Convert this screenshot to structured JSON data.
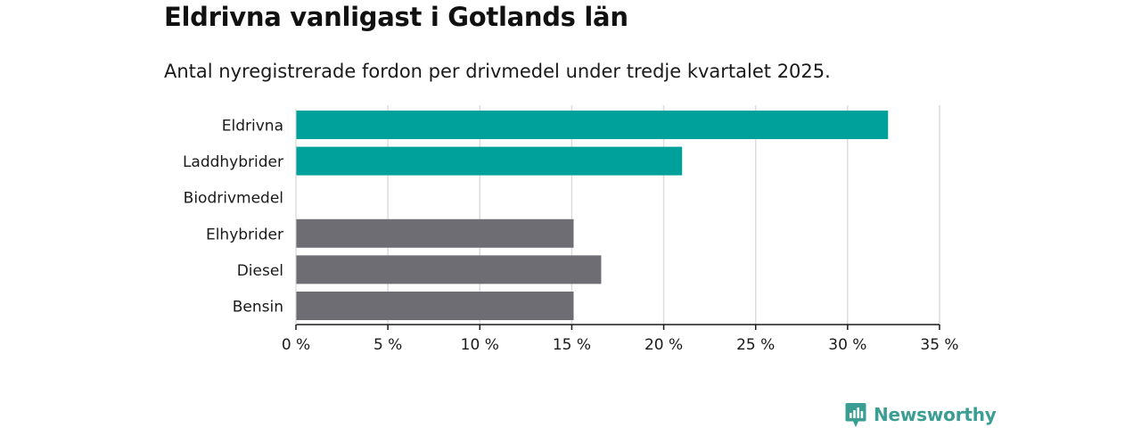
{
  "title": "Eldrivna vanligast i Gotlands län",
  "subtitle": "Antal nyregistrerade fordon per drivmedel under tredje kvartalet 2025.",
  "brand": {
    "name": "Newsworthy",
    "icon": "newsworthy-logo-icon",
    "color": "#3a9e93"
  },
  "chart_data": {
    "type": "bar",
    "orientation": "horizontal",
    "categories": [
      "Eldrivna",
      "Laddhybrider",
      "Biodrivmedel",
      "Elhybrider",
      "Diesel",
      "Bensin"
    ],
    "values": [
      32.2,
      21.0,
      0,
      15.1,
      16.6,
      15.1
    ],
    "colors": [
      "#00a19a",
      "#00a19a",
      "#00a19a",
      "#6e6d74",
      "#6e6d74",
      "#6e6d74"
    ],
    "xlim": [
      0,
      35
    ],
    "xticks": [
      0,
      5,
      10,
      15,
      20,
      25,
      30,
      35
    ],
    "tick_labels": [
      "0 %",
      "5 %",
      "10 %",
      "15 %",
      "20 %",
      "25 %",
      "30 %",
      "35 %"
    ],
    "grid": true,
    "xlabel": "",
    "ylabel": ""
  }
}
